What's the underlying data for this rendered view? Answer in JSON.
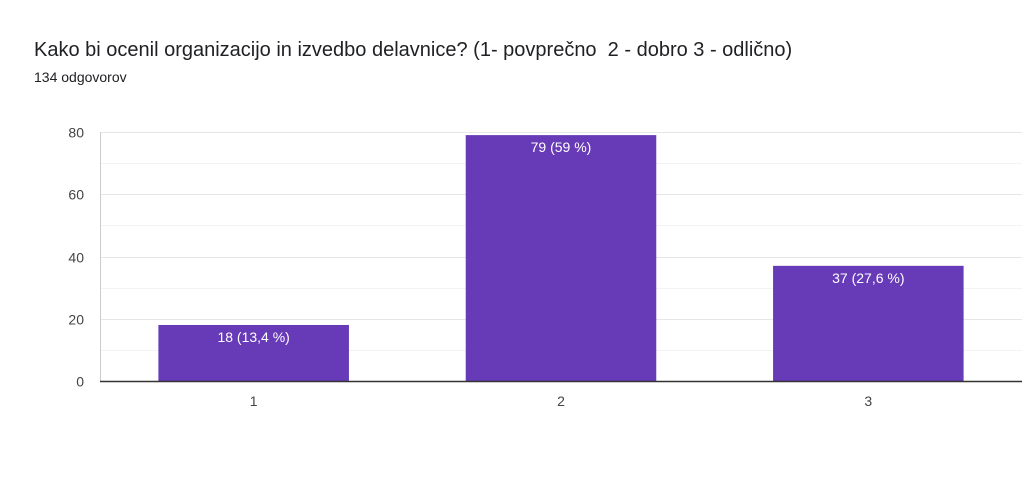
{
  "header": {
    "title": "Kako bi ocenil organizacijo in izvedbo delavnice? (1- povprečno  2 - dobro 3 - odlično)",
    "subtitle": "134 odgovorov"
  },
  "colors": {
    "bar": "#673ab7",
    "grid": "#e6e6e6",
    "axis": "#333333"
  },
  "chart_data": {
    "type": "bar",
    "categories": [
      "1",
      "2",
      "3"
    ],
    "values": [
      18,
      79,
      37
    ],
    "data_labels": [
      "18 (13,4 %)",
      "79 (59 %)",
      "37 (27,6 %)"
    ],
    "ylim": [
      0,
      80
    ],
    "yticks": [
      0,
      20,
      40,
      60,
      80
    ],
    "ytick_labels": [
      "0",
      "20",
      "40",
      "60",
      "80"
    ],
    "grid": true,
    "minor_grid": true
  }
}
